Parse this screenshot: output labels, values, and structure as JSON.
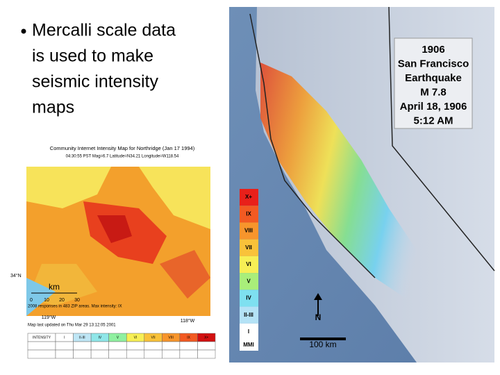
{
  "slide": {
    "bullet_lines": [
      "Mercalli scale data",
      "is used to make",
      "seismic intensity",
      "maps"
    ],
    "left_map": {
      "title": "Community Internet Intensity Map for Northridge (Jan 17 1994)",
      "subtitle": "04:30:55 PST Mag=6.7 Latitude=N34.21 Longitude=W118.54",
      "lat_label": "34°N",
      "scale_unit": "km",
      "scale_ticks": [
        "0",
        "10",
        "20",
        "30"
      ],
      "responses": "2008 responses in 483 ZIP areas. Max intensity: IX",
      "lon_labels": [
        "119°W",
        "118°W"
      ],
      "updated": "Map last updated on Thu Mar 29 13:12:05 2001",
      "table_header": [
        "INTENSITY",
        "I",
        "II-III",
        "IV",
        "V",
        "VI",
        "VII",
        "VIII",
        "IX",
        "X+"
      ]
    },
    "right_map": {
      "box_lines": [
        "1906",
        "San Francisco",
        "Earthquake",
        "M 7.8",
        "April 18, 1906",
        "5:12 AM"
      ],
      "legend": [
        "X+",
        "IX",
        "VIII",
        "VII",
        "VI",
        "V",
        "IV",
        "II-III",
        "I"
      ],
      "legend_title": "MMI",
      "north": "N",
      "scale": "100 km"
    }
  }
}
